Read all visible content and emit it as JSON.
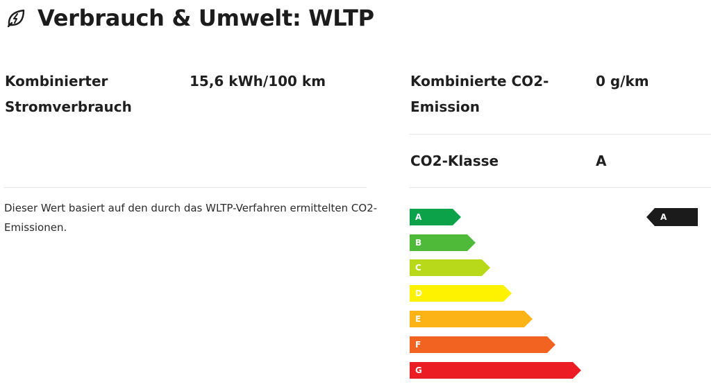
{
  "header": {
    "title": "Verbrauch & Umwelt: WLTP",
    "icon": "leaf-bolt-icon"
  },
  "consumption": {
    "label_line1": "Kombinierter",
    "label_line2": "Stromverbrauch",
    "value": "15,6 kWh/100 km"
  },
  "emission": {
    "label_line1": "Kombinierte CO2-",
    "label_line2": "Emission",
    "value": "0 g/km"
  },
  "co2_class": {
    "label": "CO2-Klasse",
    "value": "A"
  },
  "note": "Dieser Wert basiert auf den durch das WLTP-Verfahren ermittelten CO2-Emissionen.",
  "energy_scale": {
    "classes": [
      {
        "letter": "A",
        "color": "#0ca24a"
      },
      {
        "letter": "B",
        "color": "#4fb93a"
      },
      {
        "letter": "C",
        "color": "#b7d91a"
      },
      {
        "letter": "D",
        "color": "#fff200"
      },
      {
        "letter": "E",
        "color": "#fbb316"
      },
      {
        "letter": "F",
        "color": "#f26322"
      },
      {
        "letter": "G",
        "color": "#ec1c24"
      }
    ],
    "active_class": "A",
    "marker_color": "#1b1b1b"
  }
}
